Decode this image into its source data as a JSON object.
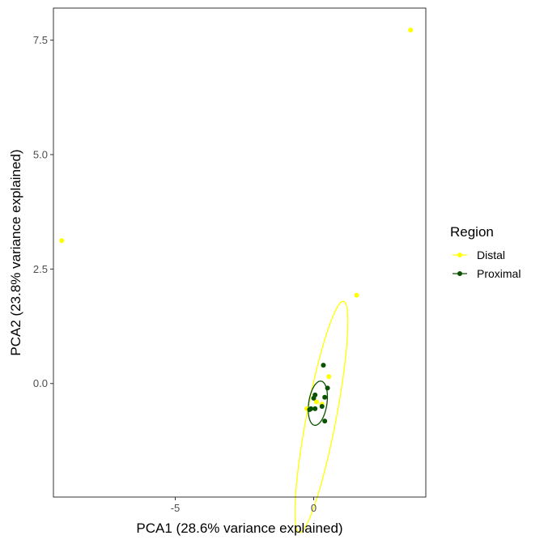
{
  "chart_data": {
    "type": "scatter",
    "title": "",
    "xlabel": "PCA1 (28.6% variance explained)",
    "ylabel": "PCA2 (23.8% variance explained)",
    "xlim": [
      -9.4,
      4.05
    ],
    "ylim": [
      -2.48,
      8.2
    ],
    "x_ticks": [
      -5,
      0
    ],
    "x_tick_labels": [
      "-5",
      "0"
    ],
    "y_ticks": [
      0,
      2.5,
      5,
      7.5
    ],
    "y_tick_labels": [
      "0.0",
      "2.5",
      "5.0",
      "7.5"
    ],
    "grid": false,
    "legend_position": "right",
    "legend_title": "Region",
    "series": [
      {
        "name": "Distal",
        "color": "#ffff00",
        "points": [
          {
            "x": 3.5,
            "y": 7.72
          },
          {
            "x": -9.1,
            "y": 3.12
          },
          {
            "x": 1.55,
            "y": 1.93
          },
          {
            "x": 0.55,
            "y": 0.15
          },
          {
            "x": -0.25,
            "y": -0.55
          },
          {
            "x": 0.1,
            "y": -0.4
          },
          {
            "x": 0.3,
            "y": -0.45
          }
        ],
        "ellipse": {
          "center": [
            0.28,
            -0.73
          ],
          "angle_deg": 72,
          "semi_major": 2.65,
          "semi_minor": 0.52
        }
      },
      {
        "name": "Proximal",
        "color": "#0a5100",
        "points": [
          {
            "x": 0.35,
            "y": 0.4
          },
          {
            "x": 0.5,
            "y": -0.1
          },
          {
            "x": 0.05,
            "y": -0.25
          },
          {
            "x": 0.0,
            "y": -0.32
          },
          {
            "x": 0.4,
            "y": -0.3
          },
          {
            "x": -0.1,
            "y": -0.55
          },
          {
            "x": -0.15,
            "y": -0.57
          },
          {
            "x": 0.05,
            "y": -0.55
          },
          {
            "x": 0.3,
            "y": -0.5
          },
          {
            "x": 0.4,
            "y": -0.82
          }
        ],
        "ellipse": {
          "center": [
            0.15,
            -0.43
          ],
          "angle_deg": 70,
          "semi_major": 0.5,
          "semi_minor": 0.32
        }
      }
    ]
  }
}
